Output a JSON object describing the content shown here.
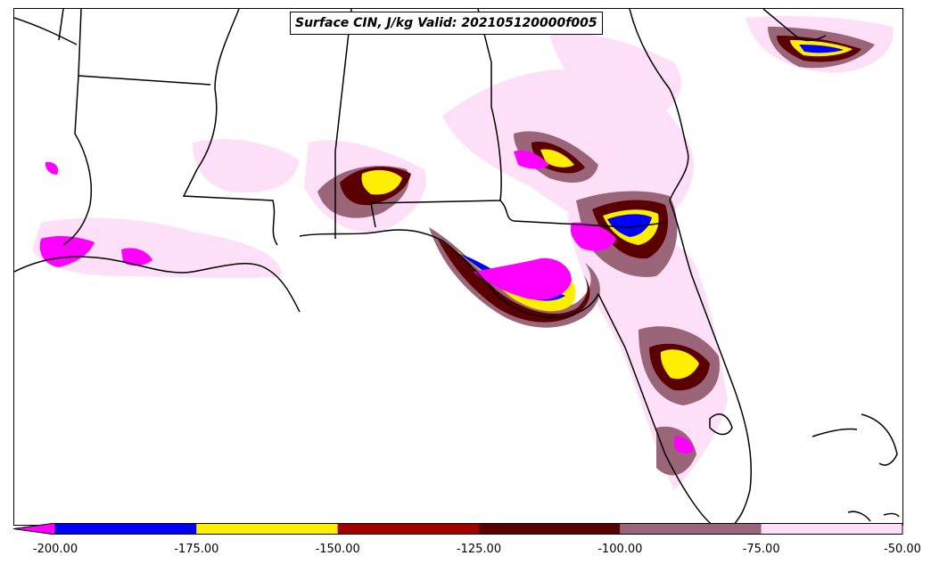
{
  "title": "Surface CIN, J/kg Valid: 202105120000f005",
  "map": {
    "region_description": "Southeastern United States: Louisiana, Mississippi, Alabama, Georgia, Florida and Gulf of Mexico coast",
    "fill_colors": {
      "lt_-200": "#ff00ff",
      "-200_-175": "#0000ff",
      "-175_-150": "#ffee00",
      "-150_-125": "#a00000",
      "-125_-100": "#5a0000",
      "-100_-75": "#9b6579",
      "-75_-50": "#fde0f8"
    },
    "outline_color": "#000000"
  },
  "colorbar": {
    "ticks": [
      "-200.00",
      "-175.00",
      "-150.00",
      "-125.00",
      "-100.00",
      "-75.00",
      "-50.00"
    ],
    "bins": [
      {
        "from": -200,
        "to": -175,
        "color": "#0000ff"
      },
      {
        "from": -175,
        "to": -150,
        "color": "#ffee00"
      },
      {
        "from": -150,
        "to": -125,
        "color": "#a00000"
      },
      {
        "from": -125,
        "to": -100,
        "color": "#5a0000"
      },
      {
        "from": -100,
        "to": -75,
        "color": "#9b6579"
      },
      {
        "from": -75,
        "to": -50,
        "color": "#fde0f8"
      }
    ],
    "extend_min_color": "#ff00ff"
  }
}
